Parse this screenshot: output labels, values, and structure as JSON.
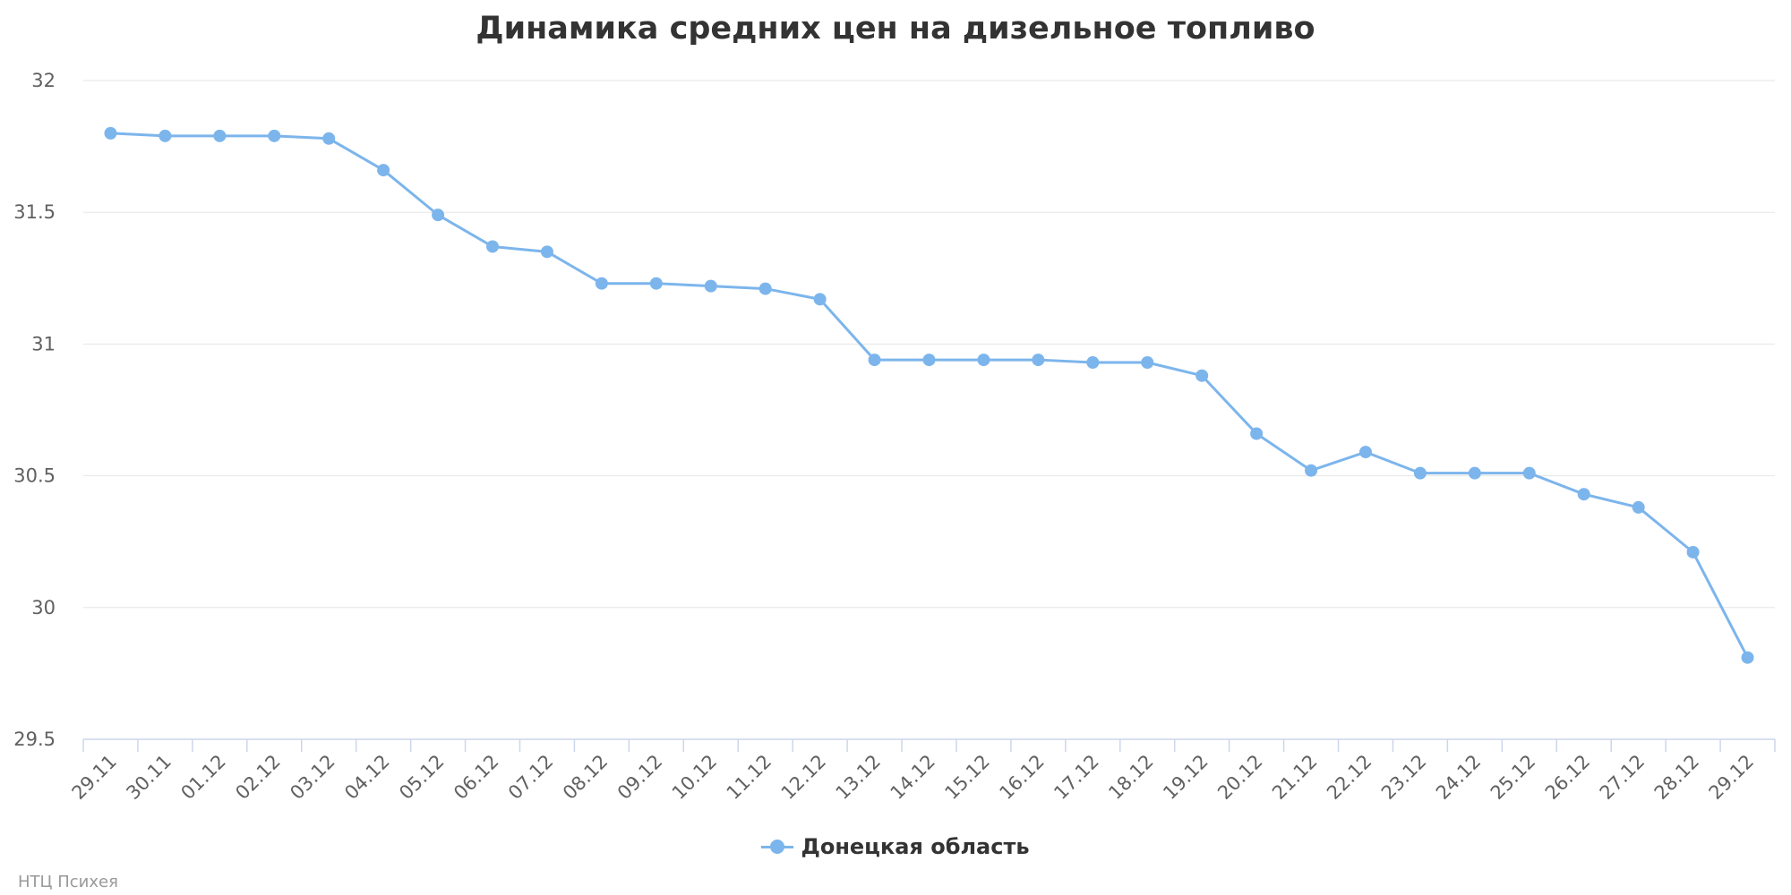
{
  "chart_data": {
    "type": "line",
    "title": "Динамика средних цен на дизельное топливо",
    "xlabel": "",
    "ylabel": "",
    "categories": [
      "29.11",
      "30.11",
      "01.12",
      "02.12",
      "03.12",
      "04.12",
      "05.12",
      "06.12",
      "07.12",
      "08.12",
      "09.12",
      "10.12",
      "11.12",
      "12.12",
      "13.12",
      "14.12",
      "15.12",
      "16.12",
      "17.12",
      "18.12",
      "19.12",
      "20.12",
      "21.12",
      "22.12",
      "23.12",
      "24.12",
      "25.12",
      "26.12",
      "27.12",
      "28.12",
      "29.12"
    ],
    "series": [
      {
        "name": "Донецкая область",
        "color": "#7cb5ec",
        "values": [
          31.8,
          31.79,
          31.79,
          31.79,
          31.78,
          31.66,
          31.49,
          31.37,
          31.35,
          31.23,
          31.23,
          31.22,
          31.21,
          31.17,
          30.94,
          30.94,
          30.94,
          30.94,
          30.93,
          30.93,
          30.88,
          30.66,
          30.52,
          30.59,
          30.51,
          30.51,
          30.51,
          30.43,
          30.38,
          30.21,
          29.81
        ]
      }
    ],
    "ylim": [
      29.5,
      32
    ],
    "yticks": [
      "29.5",
      "30",
      "30.5",
      "31",
      "31.5",
      "32"
    ],
    "grid": true,
    "legend_position": "bottom-center"
  },
  "credits": "НТЦ Психея"
}
